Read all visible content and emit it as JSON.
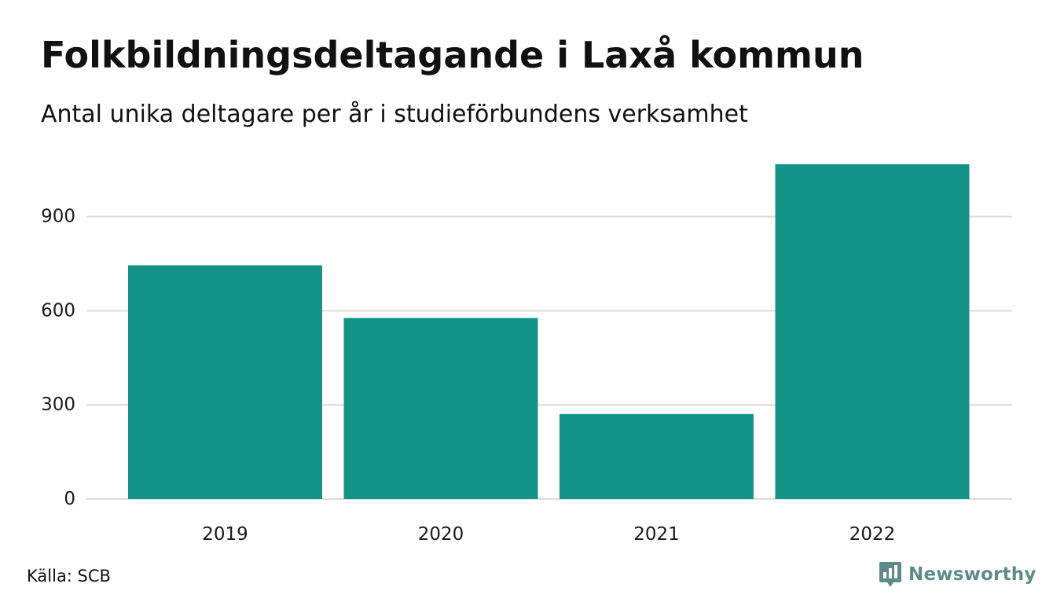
{
  "title": "Folkbildningsdeltagande i Laxå kommun",
  "subtitle": "Antal unika deltagare per år i studieförbundens verksamhet",
  "source": "Källa: SCB",
  "brand": {
    "name": "Newsworthy",
    "icon": "newsworthy-logo-icon"
  },
  "colors": {
    "bar": "#149488",
    "grid": "#dcdcdc",
    "brand": "#5f8a8b"
  },
  "chart_data": {
    "type": "bar",
    "categories": [
      "2019",
      "2020",
      "2021",
      "2022"
    ],
    "values": [
      745,
      577,
      271,
      1067
    ],
    "yticks": [
      0,
      300,
      600,
      900
    ],
    "ylim": [
      0,
      1067
    ],
    "grid": true,
    "legend": "none"
  }
}
